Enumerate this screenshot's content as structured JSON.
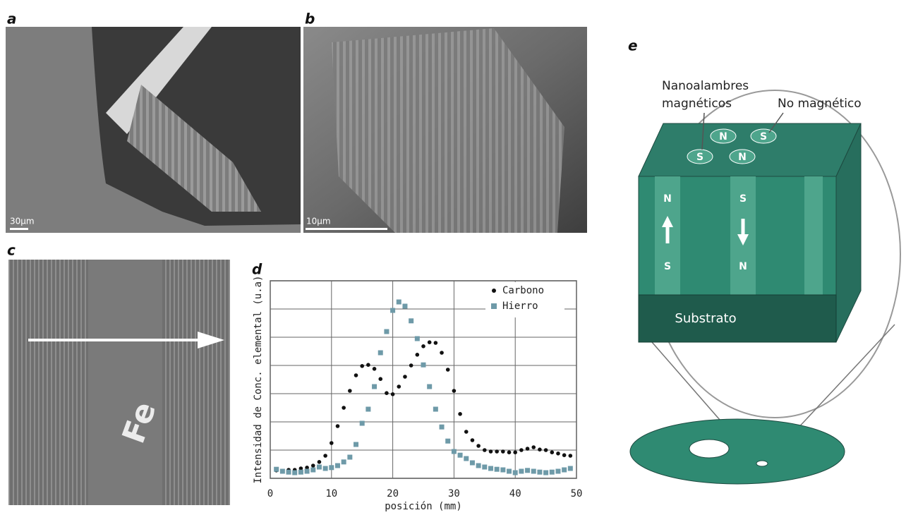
{
  "panels": {
    "a": {
      "label": "a",
      "scale_bar": "30µm"
    },
    "b": {
      "label": "b",
      "scale_bar": "10µm"
    },
    "c": {
      "label": "c",
      "text": "Fe"
    },
    "d": {
      "label": "d"
    },
    "e": {
      "label": "e",
      "wires_label": [
        "Nanoalambres",
        "magnéticos"
      ],
      "nonmagnetic_label": "No magnético",
      "top_poles": [
        "N",
        "S",
        "S",
        "N"
      ],
      "column_left": [
        "N",
        "S"
      ],
      "column_right": [
        "S",
        "N"
      ],
      "substrate_label": "Substrato"
    }
  },
  "chart_data": {
    "type": "scatter",
    "xlabel": "posición (mm)",
    "ylabel": "Intensidad de Conc. elemental (u.a)",
    "x": [
      1,
      2,
      3,
      4,
      5,
      6,
      7,
      8,
      9,
      10,
      11,
      12,
      13,
      14,
      15,
      16,
      17,
      18,
      19,
      20,
      21,
      22,
      23,
      24,
      25,
      26,
      27,
      28,
      29,
      30,
      31,
      32,
      33,
      34,
      35,
      36,
      37,
      38,
      39,
      40,
      41,
      42,
      43,
      44,
      45,
      46,
      47,
      48,
      49
    ],
    "series": [
      {
        "name": "Carbono",
        "color": "#111111",
        "marker": "circle",
        "values": [
          0.28,
          0.25,
          0.3,
          0.3,
          0.35,
          0.38,
          0.45,
          0.58,
          0.8,
          1.25,
          1.85,
          2.5,
          3.1,
          3.65,
          3.98,
          4.02,
          3.88,
          3.52,
          3.02,
          2.98,
          3.25,
          3.6,
          4.0,
          4.38,
          4.68,
          4.82,
          4.8,
          4.45,
          3.85,
          3.1,
          2.28,
          1.65,
          1.35,
          1.15,
          1.0,
          0.95,
          0.95,
          0.95,
          0.92,
          0.92,
          1.0,
          1.05,
          1.1,
          1.02,
          1.0,
          0.92,
          0.88,
          0.82,
          0.8
        ]
      },
      {
        "name": "Hierro",
        "color": "#6e9aa8",
        "marker": "square",
        "values": [
          0.32,
          0.25,
          0.22,
          0.2,
          0.22,
          0.25,
          0.3,
          0.4,
          0.35,
          0.38,
          0.45,
          0.58,
          0.75,
          1.2,
          1.95,
          2.45,
          3.25,
          4.45,
          5.2,
          5.95,
          6.25,
          6.1,
          5.58,
          4.95,
          4.02,
          3.25,
          2.45,
          1.82,
          1.32,
          0.95,
          0.82,
          0.7,
          0.55,
          0.45,
          0.4,
          0.35,
          0.32,
          0.3,
          0.25,
          0.2,
          0.25,
          0.28,
          0.25,
          0.22,
          0.2,
          0.22,
          0.25,
          0.3,
          0.35
        ]
      }
    ],
    "xlim": [
      0,
      50
    ],
    "xticks": [
      0,
      10,
      20,
      30,
      40,
      50
    ],
    "ylim": [
      0,
      7
    ],
    "ygrid": [
      1,
      2,
      3,
      4,
      5,
      6
    ],
    "grid": true,
    "legend": "upper right"
  }
}
